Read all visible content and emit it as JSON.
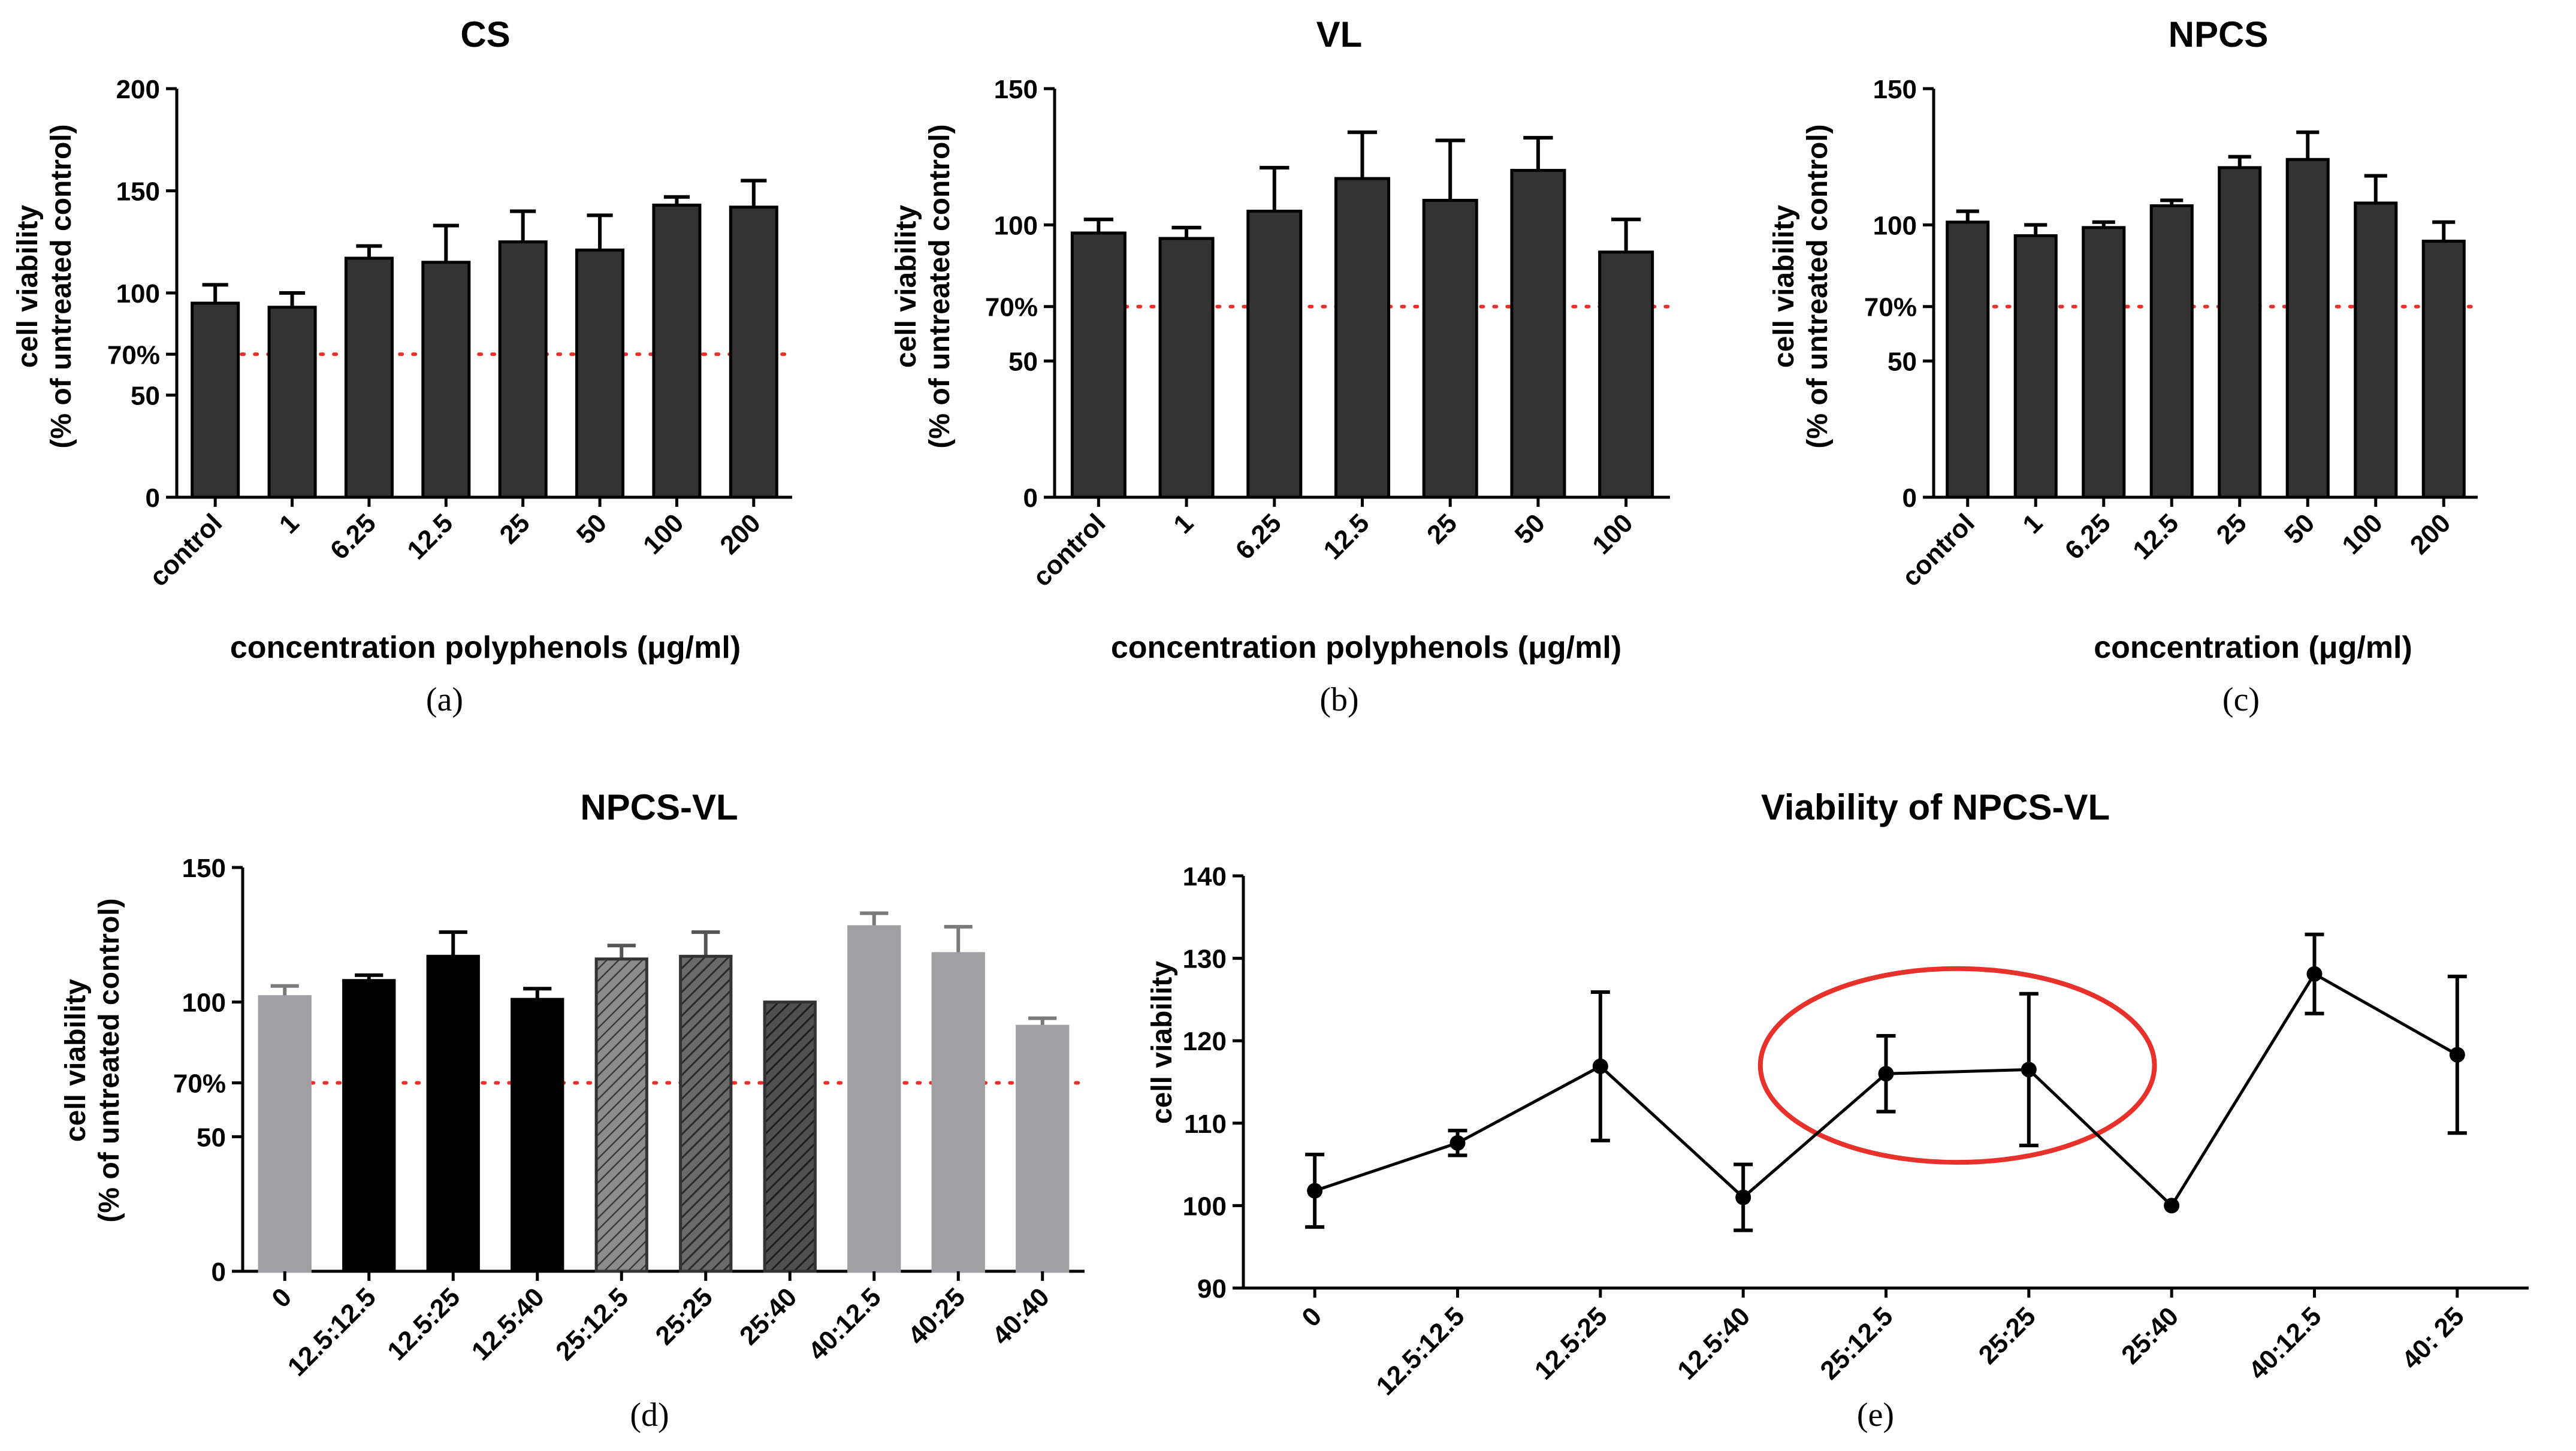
{
  "colors": {
    "bar_dark": "#333333",
    "bar_black": "#000000",
    "bar_grey": "#a0a0a4",
    "error_grey": "#7a7a7a",
    "threshold": "#e8312b",
    "highlight_ellipse": "#e8312b",
    "axis": "#000000"
  },
  "chart_data": [
    {
      "id": "a",
      "type": "bar",
      "title": "CS",
      "caption": "(a)",
      "ylabel_line1": "cell viability",
      "ylabel_line2": "(% of untreated control)",
      "xlabel": "concentration polyphenols (μg/ml)",
      "categories": [
        "control",
        "1",
        "6.25",
        "12.5",
        "25",
        "50",
        "100",
        "200"
      ],
      "values": [
        95,
        93,
        117,
        115,
        125,
        121,
        143,
        142
      ],
      "errors": [
        9,
        7,
        6,
        18,
        15,
        17,
        4,
        13
      ],
      "ylim": [
        0,
        200
      ],
      "yticks": [
        "0",
        "50",
        "100",
        "150",
        "200"
      ],
      "yticks_values": [
        0,
        50,
        100,
        150,
        200
      ],
      "threshold": 70,
      "threshold_label": "70%",
      "style": "dark"
    },
    {
      "id": "b",
      "type": "bar",
      "title": "VL",
      "caption": "(b)",
      "ylabel_line1": "cell viability",
      "ylabel_line2": "(% of untreated control)",
      "xlabel": "concentration polyphenols (μg/ml)",
      "categories": [
        "control",
        "1",
        "6.25",
        "12.5",
        "25",
        "50",
        "100"
      ],
      "values": [
        97,
        95,
        105,
        117,
        109,
        120,
        90
      ],
      "errors": [
        5,
        4,
        16,
        17,
        22,
        12,
        12
      ],
      "ylim": [
        0,
        150
      ],
      "yticks": [
        "0",
        "50",
        "100",
        "150"
      ],
      "yticks_values": [
        0,
        50,
        100,
        150
      ],
      "threshold": 70,
      "threshold_label": "70%",
      "style": "dark"
    },
    {
      "id": "c",
      "type": "bar",
      "title": "NPCS",
      "caption": "(c)",
      "ylabel_line1": "cell viability",
      "ylabel_line2": "(% of untreated control)",
      "xlabel": "concentration (μg/ml)",
      "categories": [
        "control",
        "1",
        "6.25",
        "12.5",
        "25",
        "50",
        "100",
        "200"
      ],
      "values": [
        101,
        96,
        99,
        107,
        121,
        124,
        108,
        94
      ],
      "errors": [
        4,
        4,
        2,
        2,
        4,
        10,
        10,
        7
      ],
      "ylim": [
        0,
        150
      ],
      "yticks": [
        "0",
        "50",
        "100",
        "150"
      ],
      "yticks_values": [
        0,
        50,
        100,
        150
      ],
      "threshold": 70,
      "threshold_label": "70%",
      "style": "dark"
    },
    {
      "id": "d",
      "type": "bar",
      "title": "NPCS-VL",
      "caption": "(d)",
      "ylabel_line1": "cell viability",
      "ylabel_line2": "(% of untreated control)",
      "xlabel": "",
      "categories": [
        "0",
        "12.5:12.5",
        "12.5:25",
        "12.5:40",
        "25:12.5",
        "25:25",
        "25:40",
        "40:12.5",
        "40:25",
        "40:40"
      ],
      "values": [
        102,
        108,
        117,
        101,
        116,
        117,
        100,
        128,
        118,
        91
      ],
      "errors": [
        4,
        2,
        9,
        4,
        5,
        9,
        0,
        5,
        10,
        3
      ],
      "bar_styles": [
        "grey",
        "black",
        "black",
        "black",
        "hatch-light",
        "hatch-mid",
        "hatch-dark",
        "grey",
        "grey",
        "grey"
      ],
      "ylim": [
        0,
        150
      ],
      "yticks": [
        "0",
        "50",
        "100",
        "150"
      ],
      "yticks_values": [
        0,
        50,
        100,
        150
      ],
      "threshold": 70,
      "threshold_label": "70%"
    },
    {
      "id": "e",
      "type": "line",
      "title": "Viability of NPCS-VL",
      "caption": "(e)",
      "ylabel": "cell viability",
      "xlabel": "",
      "categories": [
        "0",
        "12.5:12.5",
        "12.5:25",
        "12.5:40",
        "25:12.5",
        "25:25",
        "25:40",
        "40:12.5",
        "40: 25"
      ],
      "values": [
        101.8,
        107.6,
        116.9,
        101.0,
        116.0,
        116.5,
        100.0,
        128.1,
        118.3
      ],
      "errors": [
        4.4,
        1.5,
        9.0,
        4.0,
        4.6,
        9.2,
        0,
        4.8,
        9.5
      ],
      "ylim": [
        90,
        140
      ],
      "yticks": [
        "90",
        "100",
        "110",
        "120",
        "130",
        "140"
      ],
      "yticks_values": [
        90,
        100,
        110,
        120,
        130,
        140
      ],
      "highlight": "ellipse around 25:12.5 and 25:25"
    }
  ]
}
